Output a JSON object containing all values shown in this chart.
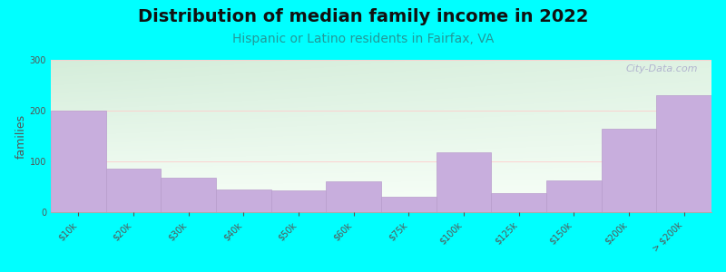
{
  "title": "Distribution of median family income in 2022",
  "subtitle": "Hispanic or Latino residents in Fairfax, VA",
  "ylabel": "families",
  "background_color": "#00FFFF",
  "bar_color": "#c8aedd",
  "bar_edge_color": "#b89ccc",
  "watermark": "City-Data.com",
  "categories": [
    "$10k",
    "$20k",
    "$30k",
    "$40k",
    "$50k",
    "$60k",
    "$75k",
    "$100k",
    "$125k",
    "$150k",
    "$200k",
    "> $200k"
  ],
  "values": [
    200,
    85,
    68,
    45,
    42,
    60,
    30,
    118,
    38,
    62,
    165,
    230
  ],
  "ylim": [
    0,
    300
  ],
  "yticks": [
    0,
    100,
    200,
    300
  ],
  "title_fontsize": 14,
  "subtitle_fontsize": 10,
  "subtitle_color": "#229999",
  "ylabel_fontsize": 9,
  "tick_fontsize": 7,
  "watermark_color": "#aaaacc",
  "gradient_top_color": "#d4edda",
  "gradient_bottom_color": "#f8fff8"
}
